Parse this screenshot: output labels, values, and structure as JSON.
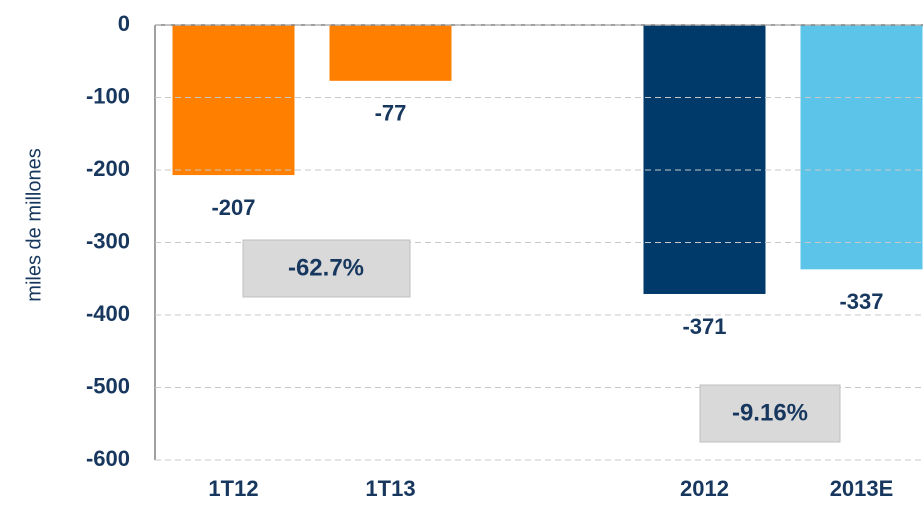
{
  "chart_data": {
    "type": "bar",
    "categories": [
      "1T12",
      "1T13",
      null,
      "2012",
      "2013E"
    ],
    "values": [
      -207,
      -77,
      null,
      -371,
      -337
    ],
    "colors": [
      "#ff7f00",
      "#ff7f00",
      null,
      "#003a6b",
      "#5bc4e8"
    ],
    "ylim": [
      -600,
      0
    ],
    "yticks": [
      0,
      -100,
      -200,
      -300,
      -400,
      -500,
      -600
    ],
    "ylabel": "miles de millones",
    "grid": true,
    "annotations": [
      "-62.7%",
      "-9.16%"
    ]
  }
}
